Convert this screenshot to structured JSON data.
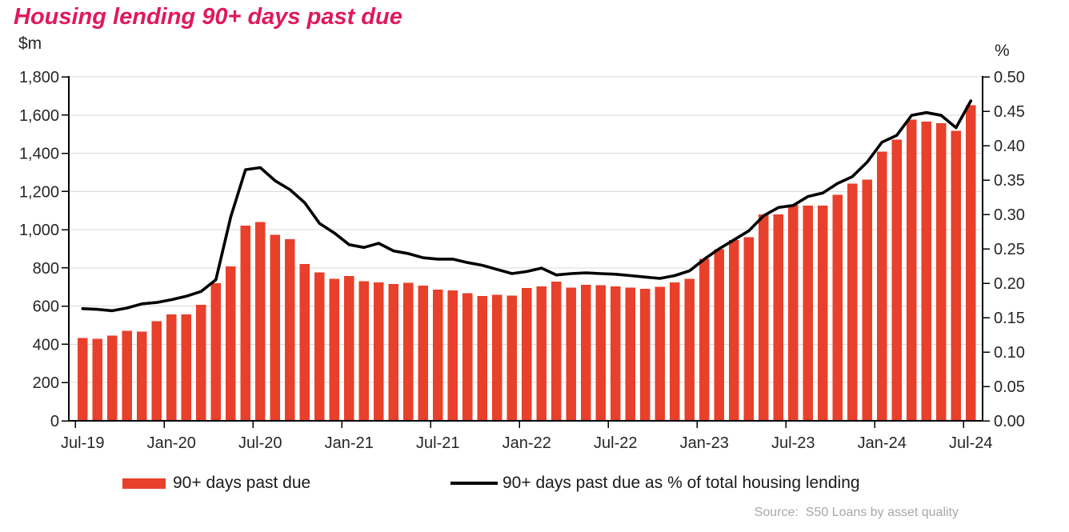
{
  "title": "Housing lending 90+ days past due",
  "colors": {
    "title": "#E1185E",
    "bar": "#E8402A",
    "line": "#000000",
    "grid": "#D9D9D9",
    "axis": "#000000",
    "tick_label": "#262626",
    "source_text": "#A8A8A8"
  },
  "left_axis": {
    "unit": "$m",
    "tick_labels": [
      "0",
      "200",
      "400",
      "600",
      "800",
      "1,000",
      "1,200",
      "1,400",
      "1,600",
      "1,800"
    ],
    "min": 0,
    "max": 1800,
    "step": 200
  },
  "right_axis": {
    "unit": "%",
    "tick_labels": [
      "0.00",
      "0.05",
      "0.10",
      "0.15",
      "0.20",
      "0.25",
      "0.30",
      "0.35",
      "0.40",
      "0.45",
      "0.50"
    ],
    "min": 0,
    "max": 0.5,
    "step": 0.05
  },
  "x_axis": {
    "tick_labels": [
      "Jul-19",
      "Jan-20",
      "Jul-20",
      "Jan-21",
      "Jul-21",
      "Jan-22",
      "Jul-22",
      "Jan-23",
      "Jul-23",
      "Jan-24",
      "Jul-24"
    ]
  },
  "legend": {
    "bars_label": "90+ days past due",
    "line_label": "90+ days past due as % of total housing lending"
  },
  "source": "Source:  S50 Loans by asset quality",
  "chart_data": {
    "type": "bar+line combo",
    "title": "Housing lending 90+ days past due",
    "grid": true,
    "legend_position": "bottom",
    "left_ylim": [
      0,
      1800
    ],
    "right_ylim": [
      0.0,
      0.5
    ],
    "x": [
      "Jul-19",
      "Aug-19",
      "Sep-19",
      "Oct-19",
      "Nov-19",
      "Dec-19",
      "Jan-20",
      "Feb-20",
      "Mar-20",
      "Apr-20",
      "May-20",
      "Jun-20",
      "Jul-20",
      "Aug-20",
      "Sep-20",
      "Oct-20",
      "Nov-20",
      "Dec-20",
      "Jan-21",
      "Feb-21",
      "Mar-21",
      "Apr-21",
      "May-21",
      "Jun-21",
      "Jul-21",
      "Aug-21",
      "Sep-21",
      "Oct-21",
      "Nov-21",
      "Dec-21",
      "Jan-22",
      "Feb-22",
      "Mar-22",
      "Apr-22",
      "May-22",
      "Jun-22",
      "Jul-22",
      "Aug-22",
      "Sep-22",
      "Oct-22",
      "Nov-22",
      "Dec-22",
      "Jan-23",
      "Feb-23",
      "Mar-23",
      "Apr-23",
      "May-23",
      "Jun-23",
      "Jul-23",
      "Aug-23",
      "Sep-23",
      "Oct-23",
      "Nov-23",
      "Dec-23",
      "Jan-24",
      "Feb-24",
      "Mar-24",
      "Apr-24",
      "May-24",
      "Jun-24",
      "Jul-24"
    ],
    "series": [
      {
        "name": "90+ days past due",
        "type": "bar",
        "axis": "left",
        "unit": "$m",
        "color": "#E8402A",
        "values": [
          434,
          429,
          445,
          470,
          466,
          521,
          557,
          557,
          608,
          721,
          808,
          1022,
          1040,
          974,
          950,
          820,
          777,
          742,
          758,
          731,
          724,
          715,
          723,
          707,
          686,
          682,
          668,
          654,
          660,
          656,
          695,
          704,
          728,
          698,
          712,
          710,
          703,
          698,
          691,
          702,
          724,
          744,
          847,
          897,
          946,
          960,
          1081,
          1081,
          1130,
          1126,
          1126,
          1182,
          1242,
          1263,
          1409,
          1472,
          1577,
          1565,
          1558,
          1517,
          1651
        ]
      },
      {
        "name": "90+ days past due as % of total housing lending",
        "type": "line",
        "axis": "right",
        "unit": "%",
        "color": "#000000",
        "values": [
          0.163,
          0.162,
          0.16,
          0.164,
          0.17,
          0.172,
          0.176,
          0.181,
          0.188,
          0.205,
          0.296,
          0.365,
          0.368,
          0.349,
          0.336,
          0.317,
          0.287,
          0.273,
          0.256,
          0.252,
          0.258,
          0.247,
          0.243,
          0.237,
          0.235,
          0.235,
          0.23,
          0.226,
          0.22,
          0.214,
          0.217,
          0.222,
          0.212,
          0.214,
          0.215,
          0.214,
          0.213,
          0.211,
          0.209,
          0.207,
          0.211,
          0.218,
          0.235,
          0.25,
          0.263,
          0.276,
          0.298,
          0.31,
          0.313,
          0.326,
          0.331,
          0.345,
          0.355,
          0.376,
          0.405,
          0.415,
          0.444,
          0.448,
          0.444,
          0.426,
          0.465
        ]
      }
    ]
  }
}
